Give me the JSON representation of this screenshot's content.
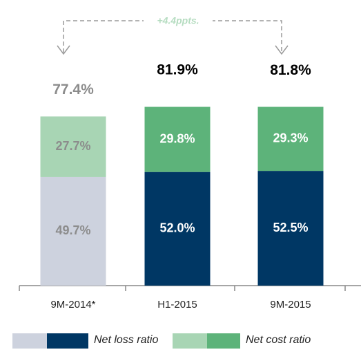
{
  "chart_data": {
    "type": "stacked_bar",
    "categories": [
      "9M-2014*",
      "H1-2015",
      "9M-2015"
    ],
    "series": [
      {
        "name": "Net loss ratio",
        "colors": [
          "#cdd2de",
          "#003764",
          "#003764"
        ],
        "values": [
          49.7,
          52.0,
          52.5
        ],
        "value_labels": [
          "49.7%",
          "52.0%",
          "52.5%"
        ]
      },
      {
        "name": "Net cost ratio",
        "colors": [
          "#a8d5b4",
          "#5db37a",
          "#5db37a"
        ],
        "values": [
          27.7,
          29.8,
          29.3
        ],
        "value_labels": [
          "27.7%",
          "29.8%",
          "29.3%"
        ]
      }
    ],
    "totals": {
      "values": [
        77.4,
        81.9,
        81.8
      ],
      "value_labels": [
        "77.4%",
        "81.9%",
        "81.8%"
      ]
    },
    "annotation": "+4.4ppts."
  }
}
